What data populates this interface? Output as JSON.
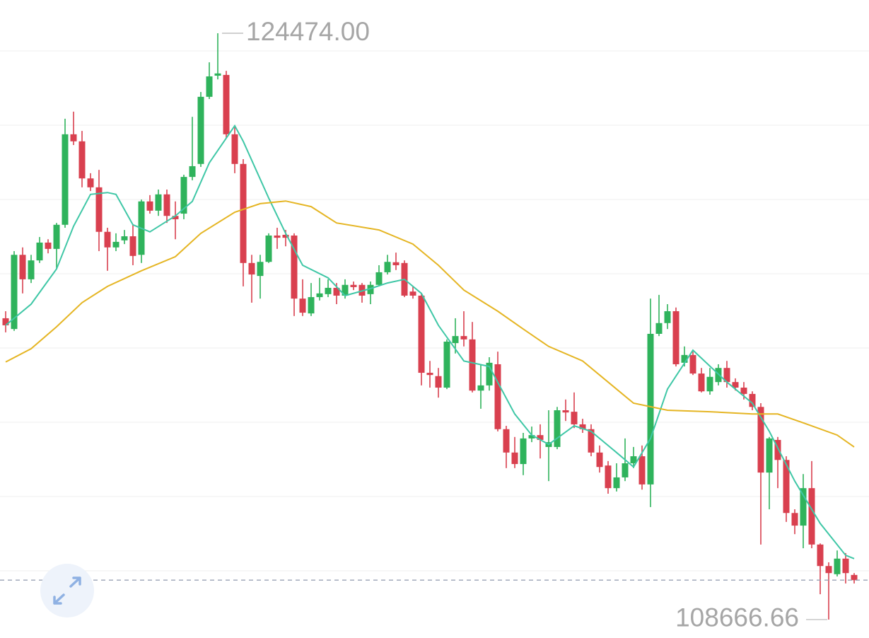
{
  "chart_data": {
    "type": "candlestick",
    "ylim": [
      108170,
      125370
    ],
    "grid": true,
    "up_color": "#2fb35c",
    "down_color": "#d9404f",
    "candles": {
      "open": [
        116790,
        116500,
        118500,
        117840,
        118350,
        118830,
        118660,
        119310,
        121750,
        121560,
        120560,
        120320,
        119120,
        118700,
        118890,
        119000,
        118500,
        119940,
        119690,
        120130,
        119550,
        119610,
        120600,
        120950,
        122760,
        123330,
        123350,
        121750,
        120950,
        118280,
        117930,
        118310,
        119020,
        119040,
        119020,
        117320,
        116920,
        117360,
        117440,
        117610,
        117400,
        117690,
        117690,
        117440,
        117690,
        118030,
        118300,
        118280,
        117510,
        117400,
        115320,
        115230,
        114920,
        116120,
        116310,
        116220,
        114840,
        114980,
        115550,
        113800,
        113170,
        112860,
        113550,
        113640,
        113320,
        113320,
        114310,
        114270,
        113930,
        113800,
        113170,
        112820,
        112210,
        112500,
        112880,
        113070,
        112310,
        116370,
        116660,
        116980,
        115590,
        115800,
        115300,
        114820,
        115070,
        115450,
        115070,
        114920,
        114750,
        114400,
        112630,
        113510,
        112970,
        111540,
        111200,
        112210,
        110690,
        110110,
        109890,
        110310,
        109870
      ],
      "high": [
        116980,
        118600,
        118700,
        118500,
        118980,
        118920,
        119360,
        122170,
        122360,
        121840,
        120700,
        120790,
        119230,
        119080,
        119170,
        119310,
        119990,
        120110,
        120260,
        120260,
        119940,
        120660,
        122220,
        122890,
        123690,
        124474,
        123460,
        121940,
        121080,
        118500,
        118500,
        119080,
        119230,
        119170,
        119080,
        117840,
        117740,
        117880,
        117840,
        117740,
        117840,
        117780,
        117740,
        117780,
        118220,
        118500,
        118560,
        118350,
        117650,
        117460,
        115640,
        115450,
        116220,
        116790,
        116980,
        116690,
        115550,
        115740,
        115890,
        113890,
        113590,
        113700,
        113870,
        113930,
        114310,
        114400,
        114600,
        114790,
        114080,
        113930,
        113360,
        112940,
        112880,
        113550,
        113320,
        113360,
        117320,
        117420,
        117170,
        117080,
        116030,
        115890,
        115450,
        115450,
        115550,
        115640,
        115170,
        115070,
        114820,
        114500,
        113590,
        113590,
        113070,
        111640,
        112590,
        112940,
        110720,
        110210,
        110530,
        110460,
        109920
      ],
      "low": [
        116410,
        116450,
        117460,
        117740,
        118280,
        118540,
        118120,
        119230,
        121460,
        120320,
        120220,
        118600,
        118070,
        118600,
        118790,
        118220,
        118280,
        119610,
        119550,
        119360,
        118920,
        119460,
        120510,
        120870,
        122700,
        123230,
        121650,
        120700,
        117650,
        117210,
        117320,
        118280,
        118660,
        118730,
        116850,
        116850,
        116850,
        117270,
        117360,
        117170,
        117320,
        117550,
        117210,
        117170,
        117650,
        117970,
        118090,
        117360,
        117320,
        114980,
        114920,
        114650,
        114880,
        115840,
        116030,
        114790,
        114350,
        114840,
        113740,
        112750,
        112750,
        112560,
        113450,
        113010,
        112400,
        113260,
        114020,
        113830,
        113700,
        113070,
        112630,
        112060,
        112120,
        112400,
        112750,
        112170,
        111700,
        116310,
        116500,
        115490,
        115490,
        115260,
        114790,
        114730,
        114980,
        114920,
        114840,
        114600,
        114310,
        110690,
        111640,
        112210,
        111300,
        110970,
        110590,
        110590,
        109350,
        108666.66,
        109830,
        109640,
        109640
      ],
      "close": [
        116600,
        118500,
        117840,
        118350,
        118830,
        118660,
        119310,
        121750,
        121560,
        120560,
        120320,
        119120,
        118700,
        118850,
        119000,
        118470,
        119940,
        119690,
        120130,
        119550,
        119460,
        120600,
        120890,
        122760,
        123310,
        123390,
        121750,
        120950,
        118280,
        117970,
        118310,
        119020,
        118960,
        118960,
        117320,
        116940,
        117360,
        117460,
        117610,
        117400,
        117690,
        117630,
        117400,
        117690,
        118030,
        118310,
        118220,
        117400,
        117400,
        115320,
        115260,
        114920,
        116160,
        116310,
        116220,
        114840,
        114980,
        115590,
        113800,
        113170,
        112860,
        113550,
        113640,
        113510,
        113450,
        114310,
        114250,
        113930,
        113800,
        113170,
        112780,
        112210,
        112500,
        112880,
        113070,
        112310,
        116370,
        116660,
        116980,
        115550,
        115800,
        115300,
        114820,
        115210,
        115450,
        115070,
        114920,
        114750,
        114400,
        112630,
        113550,
        112970,
        111540,
        111200,
        112210,
        110690,
        110110,
        109920,
        110310,
        109920,
        109730
      ]
    },
    "ma_lines": [
      {
        "color": "#3fc7a6",
        "x": [
          0,
          3,
          6,
          8,
          10,
          12,
          13,
          15,
          17,
          20,
          22,
          24,
          27,
          28,
          31,
          33,
          35,
          38,
          40,
          43,
          45,
          47,
          49,
          51,
          54,
          57,
          60,
          62,
          64,
          67,
          69,
          72,
          74,
          76,
          78,
          81,
          85,
          88,
          90,
          93,
          96,
          99,
          100
        ],
        "values": [
          116600,
          117170,
          118120,
          119270,
          120130,
          120180,
          120130,
          119310,
          119120,
          119550,
          119940,
          120980,
          121980,
          121560,
          120030,
          119080,
          118220,
          117880,
          117400,
          117590,
          117740,
          117840,
          117460,
          116600,
          115640,
          115490,
          114210,
          113640,
          113390,
          113890,
          113740,
          113170,
          112780,
          113550,
          114880,
          115930,
          115070,
          114500,
          113740,
          112400,
          111260,
          110400,
          110310
        ]
      },
      {
        "color": "#e5b523",
        "x": [
          0,
          3,
          6,
          9,
          12,
          16,
          20,
          23,
          27,
          30,
          33,
          36,
          39,
          44,
          48,
          51,
          54,
          58,
          61,
          64,
          68,
          71,
          74,
          78,
          83,
          88,
          91,
          94,
          98,
          100
        ],
        "values": [
          115610,
          115970,
          116560,
          117210,
          117650,
          118070,
          118450,
          119080,
          119650,
          119880,
          119950,
          119800,
          119360,
          119170,
          118790,
          118220,
          117550,
          116980,
          116500,
          116030,
          115640,
          115070,
          114500,
          114310,
          114270,
          114210,
          114210,
          113970,
          113640,
          113320
        ]
      }
    ],
    "annotations": [
      {
        "value": 124474,
        "label": "124474.00"
      },
      {
        "value": 108666.66,
        "label": "108666.66"
      }
    ]
  }
}
